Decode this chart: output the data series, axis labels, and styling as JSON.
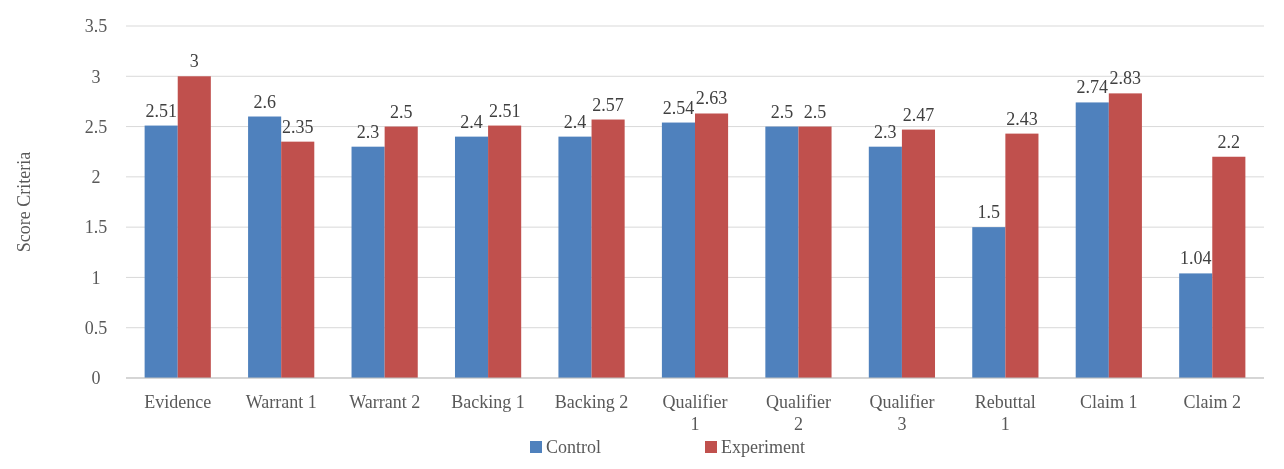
{
  "chart_data": {
    "type": "bar",
    "ylabel": "Score Criteria",
    "categories": [
      "Evidence",
      "Warrant 1",
      "Warrant 2",
      "Backing 1",
      "Backing 2",
      "Qualifier 1",
      "Qualifier 2",
      "Qualifier 3",
      "Rebuttal 1",
      "Claim 1",
      "Claim 2"
    ],
    "series": [
      {
        "name": "Control",
        "color": "#4f81bd",
        "values": [
          2.51,
          2.6,
          2.3,
          2.4,
          2.4,
          2.54,
          2.5,
          2.3,
          1.5,
          2.74,
          1.04
        ]
      },
      {
        "name": "Experiment",
        "color": "#c0504d",
        "values": [
          3,
          2.35,
          2.5,
          2.51,
          2.57,
          2.63,
          2.5,
          2.47,
          2.43,
          2.83,
          2.2
        ]
      }
    ],
    "ylim": [
      0,
      3.5
    ],
    "yticks": [
      0,
      0.5,
      1,
      1.5,
      2,
      2.5,
      3,
      3.5
    ],
    "grid": "y",
    "legend": "bottom",
    "data_labels": true
  }
}
